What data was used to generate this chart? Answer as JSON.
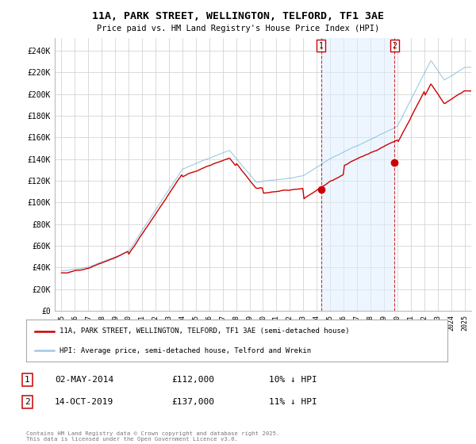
{
  "title": "11A, PARK STREET, WELLINGTON, TELFORD, TF1 3AE",
  "subtitle": "Price paid vs. HM Land Registry's House Price Index (HPI)",
  "ylabel_ticks": [
    "£0",
    "£20K",
    "£40K",
    "£60K",
    "£80K",
    "£100K",
    "£120K",
    "£140K",
    "£160K",
    "£180K",
    "£200K",
    "£220K",
    "£240K"
  ],
  "ytick_values": [
    0,
    20000,
    40000,
    60000,
    80000,
    100000,
    120000,
    140000,
    160000,
    180000,
    200000,
    220000,
    240000
  ],
  "ylim": [
    0,
    252000
  ],
  "xlim_start": 1994.5,
  "xlim_end": 2025.5,
  "hpi_color": "#6baed6",
  "hpi_alpha": 0.65,
  "price_color": "#cc0000",
  "shade_color": "#ddeeff",
  "shade_alpha": 0.5,
  "marker1_date": 2014.33,
  "marker2_date": 2019.79,
  "marker1_price": 112000,
  "marker2_price": 137000,
  "legend_line1": "11A, PARK STREET, WELLINGTON, TELFORD, TF1 3AE (semi-detached house)",
  "legend_line2": "HPI: Average price, semi-detached house, Telford and Wrekin",
  "table_row1": [
    "1",
    "02-MAY-2014",
    "£112,000",
    "10% ↓ HPI"
  ],
  "table_row2": [
    "2",
    "14-OCT-2019",
    "£137,000",
    "11% ↓ HPI"
  ],
  "footnote": "Contains HM Land Registry data © Crown copyright and database right 2025.\nThis data is licensed under the Open Government Licence v3.0.",
  "background_color": "#ffffff",
  "grid_color": "#cccccc"
}
